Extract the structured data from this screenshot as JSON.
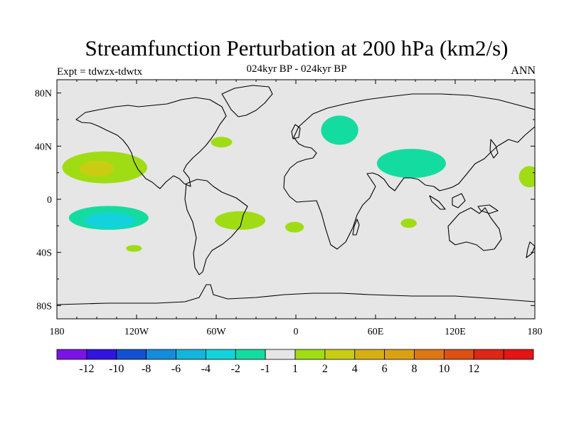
{
  "header": {
    "title": "Streamfunction Perturbation at 200 hPa (km2/s)",
    "experiment": "Expt = tdwzx-tdwtx",
    "period": "024kyr BP - 024kyr BP",
    "season": "ANN"
  },
  "chart_data": {
    "type": "heatmap",
    "projection": "cylindrical-equidistant",
    "lon_range": [
      -180,
      180
    ],
    "lat_range": [
      -90,
      90
    ],
    "x_tick_labels": [
      {
        "lon": -180,
        "label": "180"
      },
      {
        "lon": -120,
        "label": "120W"
      },
      {
        "lon": -60,
        "label": "60W"
      },
      {
        "lon": 0,
        "label": "0"
      },
      {
        "lon": 60,
        "label": "60E"
      },
      {
        "lon": 120,
        "label": "120E"
      },
      {
        "lon": 180,
        "label": "180"
      }
    ],
    "y_tick_labels": [
      {
        "lat": 80,
        "label": "80N"
      },
      {
        "lat": 40,
        "label": "40N"
      },
      {
        "lat": 0,
        "label": "0"
      },
      {
        "lat": -40,
        "label": "40S"
      },
      {
        "lat": -80,
        "label": "80S"
      }
    ],
    "background_color": "#e6e6e6",
    "colorbar": {
      "colors": [
        "#7a14e6",
        "#3214e0",
        "#1450d2",
        "#148cdc",
        "#14b4dc",
        "#14d2dc",
        "#14dca0",
        "#e6e6e6",
        "#a0dc14",
        "#c8cd14",
        "#d7af14",
        "#dca014",
        "#dc7814",
        "#dc5014",
        "#dc2814",
        "#e61414"
      ],
      "labels": [
        "-12",
        "-10",
        "-8",
        "-6",
        "-4",
        "-2",
        "-1",
        "1",
        "2",
        "4",
        "6",
        "8",
        "10",
        "12"
      ]
    },
    "regions": [
      {
        "level": "2",
        "color": "#a0dc14",
        "center": [
          -144,
          24
        ],
        "radius": [
          32,
          12
        ]
      },
      {
        "level": "4",
        "color": "#c8cd14",
        "center": [
          -150,
          23
        ],
        "radius": [
          13,
          6
        ]
      },
      {
        "level": "-1",
        "color": "#14dca0",
        "center": [
          -141,
          -14
        ],
        "radius": [
          30,
          9
        ]
      },
      {
        "level": "-2",
        "color": "#14d2dc",
        "center": [
          -140,
          -16
        ],
        "radius": [
          19,
          6
        ]
      },
      {
        "level": "2",
        "color": "#a0dc14",
        "center": [
          -122,
          -37
        ],
        "radius": [
          6,
          2.5
        ]
      },
      {
        "level": "2",
        "color": "#a0dc14",
        "center": [
          -56,
          43
        ],
        "radius": [
          8,
          4
        ]
      },
      {
        "level": "2",
        "color": "#a0dc14",
        "center": [
          -42,
          -16
        ],
        "radius": [
          19,
          7
        ]
      },
      {
        "level": "2",
        "color": "#a0dc14",
        "center": [
          -1,
          -21
        ],
        "radius": [
          7,
          4
        ]
      },
      {
        "level": "-1",
        "color": "#14dca0",
        "center": [
          33,
          52
        ],
        "radius": [
          14,
          11
        ]
      },
      {
        "level": "-1",
        "color": "#14dca0",
        "center": [
          87,
          27
        ],
        "radius": [
          26,
          11
        ]
      },
      {
        "level": "2",
        "color": "#a0dc14",
        "center": [
          85,
          -18
        ],
        "radius": [
          6,
          3.5
        ]
      },
      {
        "level": "2",
        "color": "#a0dc14",
        "center": [
          176,
          17
        ],
        "radius": [
          8,
          8
        ]
      }
    ]
  }
}
